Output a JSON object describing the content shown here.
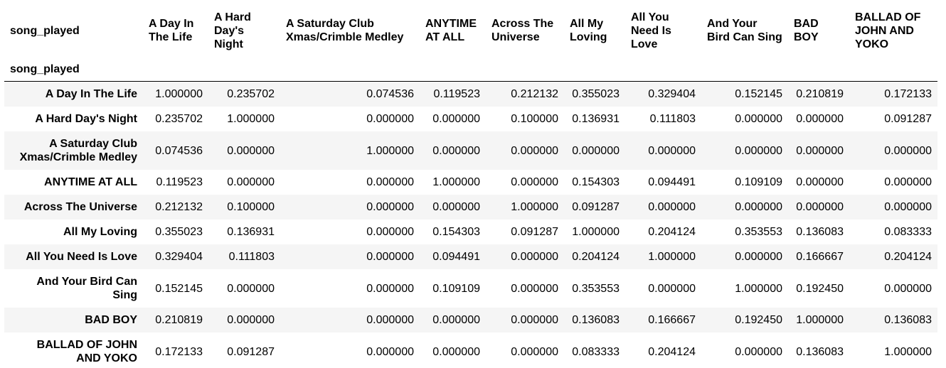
{
  "table": {
    "index_name": "song_played",
    "columns": [
      "A Day In The Life",
      "A Hard Day's Night",
      "A Saturday Club Xmas/Crimble Medley",
      "ANYTIME AT ALL",
      "Across The Universe",
      "All My Loving",
      "All You Need Is Love",
      "And Your Bird Can Sing",
      "BAD BOY",
      "BALLAD OF JOHN AND YOKO"
    ],
    "rows": [
      {
        "label": "A Day In The Life",
        "values": [
          "1.000000",
          "0.235702",
          "0.074536",
          "0.119523",
          "0.212132",
          "0.355023",
          "0.329404",
          "0.152145",
          "0.210819",
          "0.172133"
        ]
      },
      {
        "label": "A Hard Day's Night",
        "values": [
          "0.235702",
          "1.000000",
          "0.000000",
          "0.000000",
          "0.100000",
          "0.136931",
          "0.111803",
          "0.000000",
          "0.000000",
          "0.091287"
        ]
      },
      {
        "label": "A Saturday Club Xmas/Crimble Medley",
        "values": [
          "0.074536",
          "0.000000",
          "1.000000",
          "0.000000",
          "0.000000",
          "0.000000",
          "0.000000",
          "0.000000",
          "0.000000",
          "0.000000"
        ]
      },
      {
        "label": "ANYTIME AT ALL",
        "values": [
          "0.119523",
          "0.000000",
          "0.000000",
          "1.000000",
          "0.000000",
          "0.154303",
          "0.094491",
          "0.109109",
          "0.000000",
          "0.000000"
        ]
      },
      {
        "label": "Across The Universe",
        "values": [
          "0.212132",
          "0.100000",
          "0.000000",
          "0.000000",
          "1.000000",
          "0.091287",
          "0.000000",
          "0.000000",
          "0.000000",
          "0.000000"
        ]
      },
      {
        "label": "All My Loving",
        "values": [
          "0.355023",
          "0.136931",
          "0.000000",
          "0.154303",
          "0.091287",
          "1.000000",
          "0.204124",
          "0.353553",
          "0.136083",
          "0.083333"
        ]
      },
      {
        "label": "All You Need Is Love",
        "values": [
          "0.329404",
          "0.111803",
          "0.000000",
          "0.094491",
          "0.000000",
          "0.204124",
          "1.000000",
          "0.000000",
          "0.166667",
          "0.204124"
        ]
      },
      {
        "label": "And Your Bird Can Sing",
        "values": [
          "0.152145",
          "0.000000",
          "0.000000",
          "0.109109",
          "0.000000",
          "0.353553",
          "0.000000",
          "1.000000",
          "0.192450",
          "0.000000"
        ]
      },
      {
        "label": "BAD BOY",
        "values": [
          "0.210819",
          "0.000000",
          "0.000000",
          "0.000000",
          "0.000000",
          "0.136083",
          "0.166667",
          "0.192450",
          "1.000000",
          "0.136083"
        ]
      },
      {
        "label": "BALLAD OF JOHN AND YOKO",
        "values": [
          "0.172133",
          "0.091287",
          "0.000000",
          "0.000000",
          "0.000000",
          "0.083333",
          "0.204124",
          "0.000000",
          "0.136083",
          "1.000000"
        ]
      }
    ]
  }
}
